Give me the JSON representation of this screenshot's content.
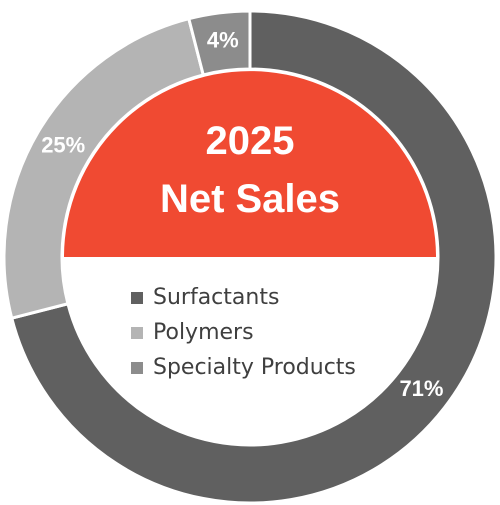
{
  "chart_data": {
    "type": "donut",
    "title": "2025\nNet Sales",
    "categories": [
      "Surfactants",
      "Polymers",
      "Specialty Products"
    ],
    "values": [
      71,
      25,
      4
    ],
    "value_labels": [
      "71%",
      "25%",
      "4%"
    ],
    "colors": [
      "#606060",
      "#b4b4b4",
      "#8c8c8c"
    ],
    "center_color": "#f04a32"
  }
}
